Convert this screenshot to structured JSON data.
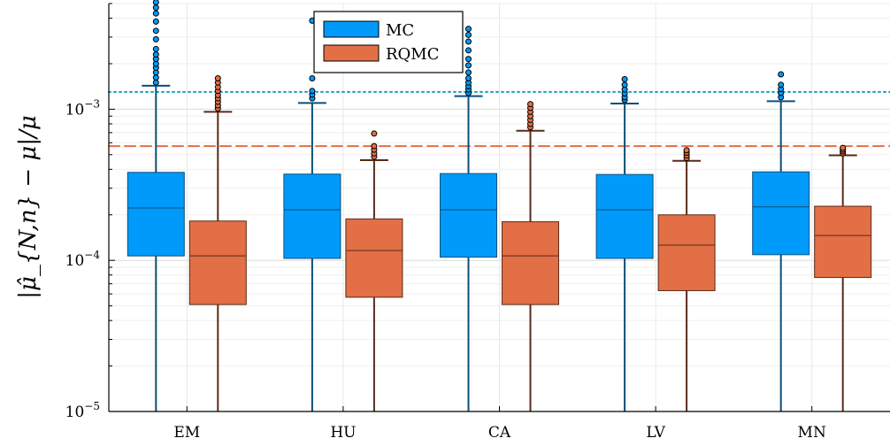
{
  "chart_data": {
    "type": "box",
    "ylabel": "|μ̂_{N,n} − μ|/μ",
    "yscale": "log",
    "ylim": [
      1e-05,
      0.005
    ],
    "ytick_values": [
      1e-05,
      0.0001,
      0.001
    ],
    "ytick_labels": [
      {
        "base": "10",
        "exp": "−5"
      },
      {
        "base": "10",
        "exp": "−4"
      },
      {
        "base": "10",
        "exp": "−3"
      }
    ],
    "categories": [
      "EM",
      "HU",
      "CA",
      "LV",
      "MN"
    ],
    "grid": true,
    "legend": {
      "position": "top-center",
      "entries": [
        "MC",
        "RQMC"
      ]
    },
    "series": [
      {
        "name": "MC",
        "color": "#009AFA",
        "edge_color": "#0B4F7A",
        "boxes": [
          {
            "whisker_low": 1e-05,
            "q1": 0.000107,
            "median": 0.000222,
            "q3": 0.000382,
            "whisker_high": 0.00143,
            "outliers": [
              0.0015,
              0.00162,
              0.00175,
              0.00188,
              0.002,
              0.00215,
              0.0023,
              0.0025,
              0.0029,
              0.0033,
              0.0038,
              0.0043,
              0.0047,
              0.0051
            ]
          },
          {
            "whisker_low": 1e-05,
            "q1": 0.000103,
            "median": 0.000216,
            "q3": 0.000372,
            "whisker_high": 0.0011,
            "outliers": [
              0.00118,
              0.00125,
              0.00132,
              0.0016,
              0.00385
            ]
          },
          {
            "whisker_low": 1e-05,
            "q1": 0.000105,
            "median": 0.000216,
            "q3": 0.000375,
            "whisker_high": 0.00122,
            "outliers": [
              0.00128,
              0.00135,
              0.00142,
              0.0015,
              0.0016,
              0.00175,
              0.00195,
              0.00215,
              0.00245,
              0.0028,
              0.0031,
              0.0034
            ]
          },
          {
            "whisker_low": 1e-05,
            "q1": 0.000103,
            "median": 0.000216,
            "q3": 0.00037,
            "whisker_high": 0.00109,
            "outliers": [
              0.00115,
              0.0012,
              0.00127,
              0.00135,
              0.00145,
              0.00158
            ]
          },
          {
            "whisker_low": 1e-05,
            "q1": 0.000109,
            "median": 0.000226,
            "q3": 0.000385,
            "whisker_high": 0.00113,
            "outliers": [
              0.0012,
              0.00128,
              0.00136,
              0.00145,
              0.0017
            ]
          }
        ]
      },
      {
        "name": "RQMC",
        "color": "#E26F46",
        "edge_color": "#5A2A18",
        "boxes": [
          {
            "whisker_low": 1e-05,
            "q1": 5.1e-05,
            "median": 0.000107,
            "q3": 0.000182,
            "whisker_high": 0.00096,
            "outliers": [
              0.00101,
              0.00106,
              0.00112,
              0.00118,
              0.00124,
              0.00132,
              0.0014,
              0.0015,
              0.0016
            ]
          },
          {
            "whisker_low": 1e-05,
            "q1": 5.7e-05,
            "median": 0.000116,
            "q3": 0.000188,
            "whisker_high": 0.00046,
            "outliers": [
              0.000485,
              0.00051,
              0.00054,
              0.00057,
              0.00069
            ]
          },
          {
            "whisker_low": 1e-05,
            "q1": 5.1e-05,
            "median": 0.000107,
            "q3": 0.00018,
            "whisker_high": 0.00072,
            "outliers": [
              0.00076,
              0.0008,
              0.00085,
              0.0009,
              0.00096,
              0.00102,
              0.00108
            ]
          },
          {
            "whisker_low": 1e-05,
            "q1": 6.3e-05,
            "median": 0.000126,
            "q3": 0.0002,
            "whisker_high": 0.000455,
            "outliers": [
              0.000475,
              0.000495,
              0.000515,
              0.000535
            ]
          },
          {
            "whisker_low": 1e-05,
            "q1": 7.7e-05,
            "median": 0.000146,
            "q3": 0.000228,
            "whisker_high": 0.000495,
            "outliers": [
              0.00051,
              0.000525,
              0.00054,
              0.000555
            ]
          }
        ]
      }
    ],
    "hlines": [
      {
        "value": 0.0013,
        "style": "dotted",
        "color": "#19A0C8"
      },
      {
        "value": 0.00057,
        "style": "dashed",
        "color": "#E26F46"
      }
    ]
  }
}
